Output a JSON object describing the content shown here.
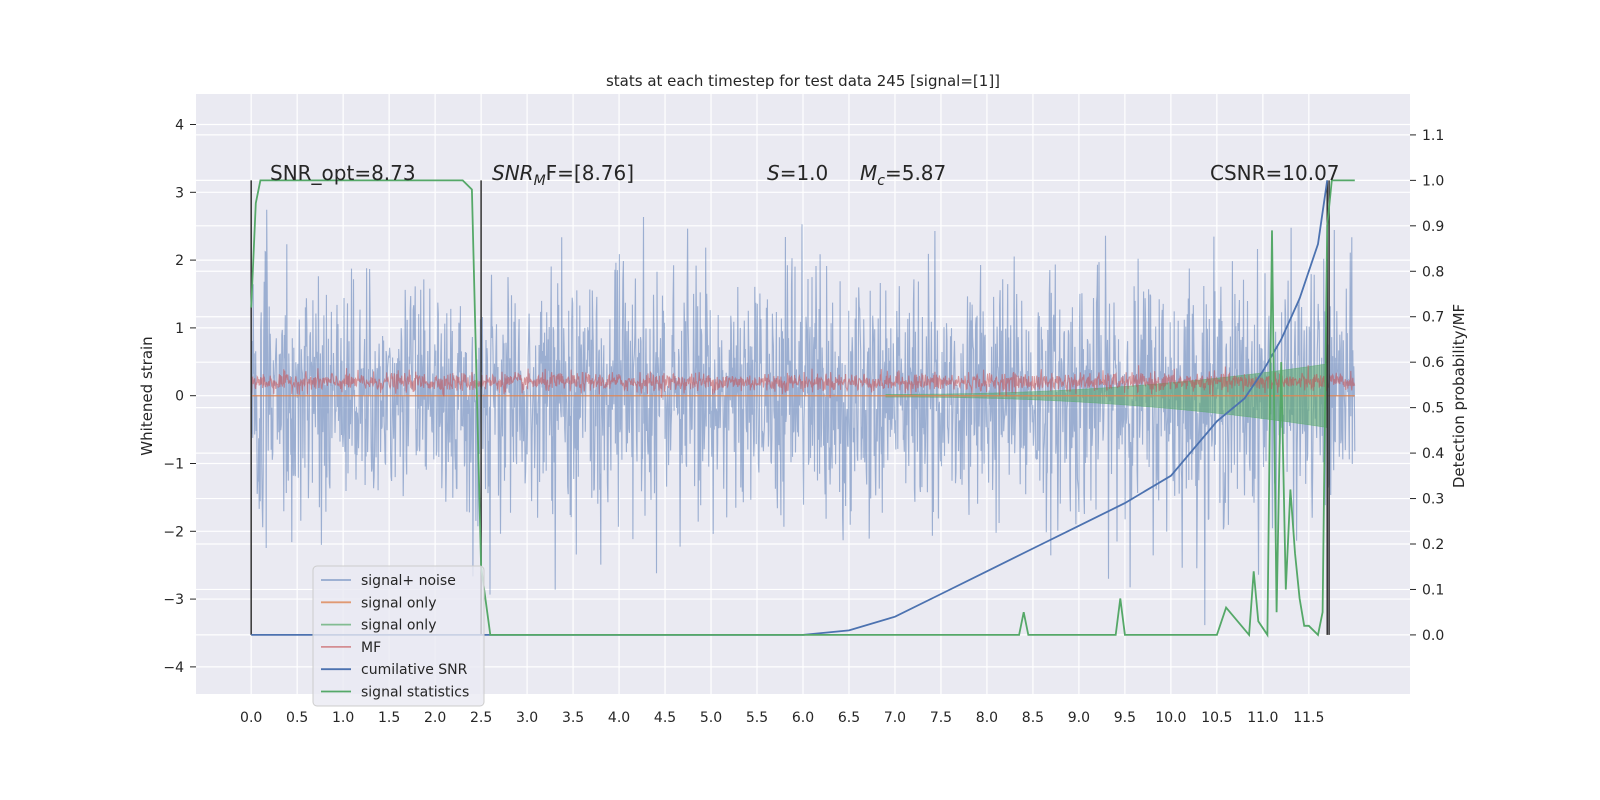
{
  "chart_data": {
    "type": "line",
    "title": "stats at each timestep for test data 245 [signal=[1]]",
    "xlabel": "",
    "ylabel": "Whitened strain",
    "y2label": "Detection probability/MF",
    "xlim": [
      -0.6,
      12.6
    ],
    "ylim": [
      -4.4,
      4.45
    ],
    "y2lim": [
      -0.13,
      1.19
    ],
    "x_ticks": [
      "0.0",
      "0.5",
      "1.0",
      "1.5",
      "2.0",
      "2.5",
      "3.0",
      "3.5",
      "4.0",
      "4.5",
      "5.0",
      "5.5",
      "6.0",
      "6.5",
      "7.0",
      "7.5",
      "8.0",
      "8.5",
      "9.0",
      "9.5",
      "10.0",
      "10.5",
      "11.0",
      "11.5"
    ],
    "y_ticks": [
      "4",
      "3",
      "2",
      "1",
      "0",
      "−1",
      "−2",
      "−3",
      "−4"
    ],
    "y2_ticks": [
      "1.1",
      "1.0",
      "0.9",
      "0.8",
      "0.7",
      "0.6",
      "0.5",
      "0.4",
      "0.3",
      "0.2",
      "0.1",
      "0.0"
    ],
    "grid": true,
    "legend_position": "lower-left",
    "colors": {
      "signal_noise": "#4c72b0",
      "signal_only_orange": "#dd8452",
      "signal_only_green": "#55a868",
      "mf": "#c44e52",
      "cumulative": "#4c72b0",
      "statistics": "#55a868",
      "background": "#eaeaf2"
    },
    "annotations": [
      {
        "text": "SNR_opt=8.73"
      },
      {
        "text": "SNR",
        "sub": "M",
        "suffix": "F=[8.76]"
      },
      {
        "text": "S",
        "suffix": "=1.0"
      },
      {
        "text": "M",
        "sub": "c",
        "suffix": "=5.87"
      },
      {
        "text": "CSNR=10.07"
      }
    ],
    "series": [
      {
        "name": "signal+ noise",
        "x_range": [
          0.0,
          12.0
        ],
        "amplitude": 2.0
      },
      {
        "name": "signal only",
        "note": "orange, flat at 0"
      },
      {
        "name": "signal only",
        "chirp_start": 6.9,
        "chirp_end": 11.7
      },
      {
        "name": "MF",
        "level": 0.2
      },
      {
        "name": "cumilative SNR",
        "x": [
          0.0,
          6.0,
          6.5,
          7.0,
          7.5,
          8.0,
          8.5,
          9.0,
          9.5,
          10.0,
          10.5,
          10.8,
          11.0,
          11.2,
          11.4,
          11.6,
          11.7
        ],
        "y": [
          0.0,
          0.0,
          0.01,
          0.04,
          0.09,
          0.14,
          0.19,
          0.24,
          0.29,
          0.35,
          0.47,
          0.52,
          0.58,
          0.65,
          0.74,
          0.86,
          1.0
        ]
      },
      {
        "name": "signal statistics",
        "x": [
          0.0,
          0.05,
          0.1,
          2.3,
          2.4,
          2.5,
          2.6,
          8.35,
          8.4,
          8.45,
          9.4,
          9.45,
          9.5,
          10.5,
          10.6,
          10.85,
          10.9,
          10.95,
          11.05,
          11.1,
          11.15,
          11.2,
          11.25,
          11.3,
          11.35,
          11.4,
          11.45,
          11.5,
          11.6,
          11.65,
          11.7,
          11.75,
          12.0
        ],
        "y": [
          0.72,
          0.95,
          1.0,
          1.0,
          0.98,
          0.15,
          0.0,
          0.0,
          0.05,
          0.0,
          0.0,
          0.08,
          0.0,
          0.0,
          0.06,
          0.0,
          0.14,
          0.03,
          0.0,
          0.89,
          0.05,
          0.6,
          0.1,
          0.32,
          0.18,
          0.08,
          0.02,
          0.02,
          0.0,
          0.05,
          0.9,
          1.0,
          1.0
        ]
      }
    ]
  }
}
